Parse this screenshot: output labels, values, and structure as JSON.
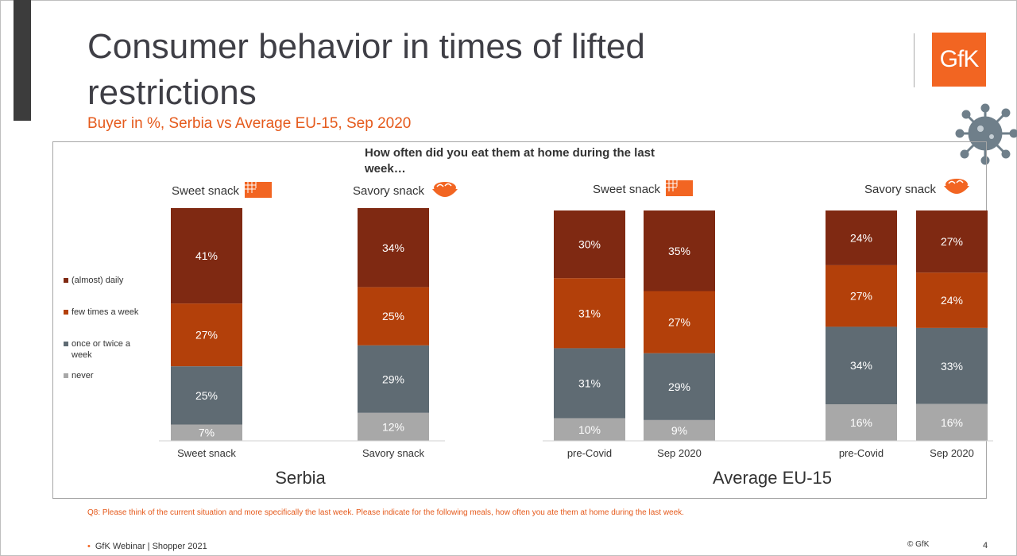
{
  "slide": {
    "title": "Consumer behavior in times of lifted restrictions",
    "subtitle": "Buyer in %, Serbia vs Average EU-15, Sep 2020",
    "logo_text": "GfK",
    "question": "How often did you eat them at home during the last week…",
    "panel_labels": [
      "Sweet snack",
      "Savory snack",
      "Sweet snack",
      "Savory snack"
    ],
    "footnote": "Q8: Please think of the current situation and more specifically the last week. Please indicate for the following meals, how often you ate them at home during the last week.",
    "footer": "GfK Webinar | Shopper 2021",
    "copyright": "© GfK",
    "page_number": "4",
    "icons": [
      "sweet-snack-icon",
      "savory-snack-icon",
      "virus-icon"
    ]
  },
  "colors": {
    "accent": "#f26522",
    "daily": "#7f2912",
    "few_times": "#b3400a",
    "once_twice": "#5f6b73",
    "never": "#a8a8a8"
  },
  "chart_data": {
    "type": "bar",
    "stacked": true,
    "unit": "%",
    "legend": [
      "(almost) daily",
      "few times a week",
      "once or twice a week",
      "never"
    ],
    "legend_position": "left",
    "groups": [
      {
        "name": "Serbia",
        "categories": [
          "Sweet snack",
          "Savory snack"
        ]
      },
      {
        "name": "Average EU-15",
        "categories": [
          "pre-Covid",
          "Sep 2020",
          "pre-Covid",
          "Sep 2020"
        ]
      }
    ],
    "categories": [
      "Sweet snack",
      "Savory snack",
      "pre-Covid",
      "Sep 2020",
      "pre-Covid",
      "Sep 2020"
    ],
    "series": [
      {
        "name": "(almost) daily",
        "values": [
          41,
          34,
          30,
          35,
          24,
          27
        ]
      },
      {
        "name": "few times a week",
        "values": [
          27,
          25,
          31,
          27,
          27,
          24
        ]
      },
      {
        "name": "once or twice a week",
        "values": [
          25,
          29,
          31,
          29,
          34,
          33
        ]
      },
      {
        "name": "never",
        "values": [
          7,
          12,
          10,
          9,
          16,
          16
        ]
      }
    ]
  }
}
